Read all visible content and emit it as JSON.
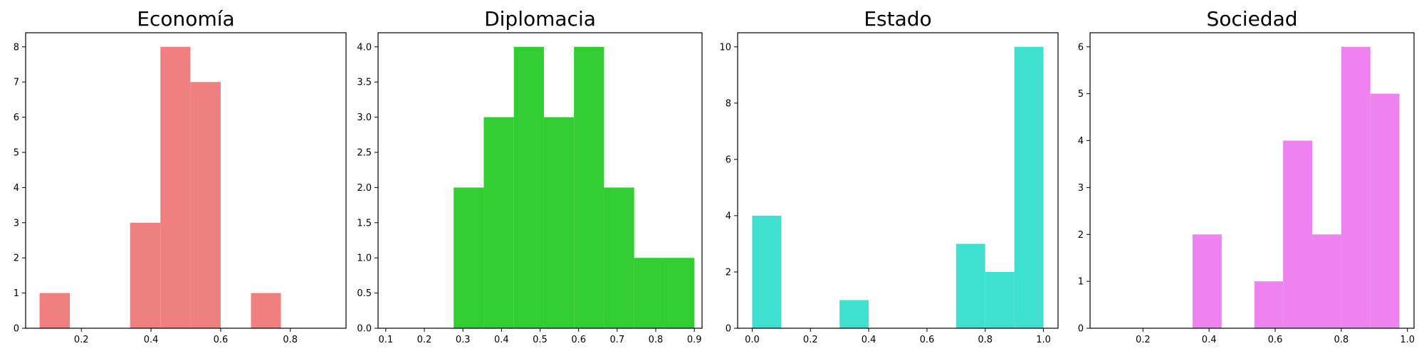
{
  "chart_data": [
    {
      "type": "bar",
      "title": "Economía",
      "color": "#f08080",
      "xlim": [
        0.04,
        0.96
      ],
      "ylim": [
        0,
        8.4
      ],
      "xticks": [
        0.2,
        0.4,
        0.6,
        0.8
      ],
      "xtick_labels": [
        "0.2",
        "0.4",
        "0.6",
        "0.8"
      ],
      "yticks": [
        0,
        1,
        2,
        3,
        4,
        5,
        6,
        7,
        8
      ],
      "ytick_labels": [
        "0",
        "1",
        "2",
        "3",
        "4",
        "5",
        "6",
        "7",
        "8"
      ],
      "bins": [
        {
          "x0": 0.08,
          "x1": 0.167,
          "count": 1
        },
        {
          "x0": 0.167,
          "x1": 0.253,
          "count": 0
        },
        {
          "x0": 0.253,
          "x1": 0.34,
          "count": 0
        },
        {
          "x0": 0.34,
          "x1": 0.427,
          "count": 3
        },
        {
          "x0": 0.427,
          "x1": 0.513,
          "count": 8
        },
        {
          "x0": 0.513,
          "x1": 0.6,
          "count": 7
        },
        {
          "x0": 0.6,
          "x1": 0.687,
          "count": 0
        },
        {
          "x0": 0.687,
          "x1": 0.773,
          "count": 1
        }
      ]
    },
    {
      "type": "bar",
      "title": "Diplomacia",
      "color": "#32cd32",
      "xlim": [
        0.08,
        0.92
      ],
      "ylim": [
        0,
        4.2
      ],
      "xticks": [
        0.1,
        0.2,
        0.3,
        0.4,
        0.5,
        0.6,
        0.7,
        0.8,
        0.9
      ],
      "xtick_labels": [
        "0.1",
        "0.2",
        "0.3",
        "0.4",
        "0.5",
        "0.6",
        "0.7",
        "0.8",
        "0.9"
      ],
      "yticks": [
        0,
        0.5,
        1,
        1.5,
        2,
        2.5,
        3,
        3.5,
        4
      ],
      "ytick_labels": [
        "0.0",
        "0.5",
        "1.0",
        "1.5",
        "2.0",
        "2.5",
        "3.0",
        "3.5",
        "4.0"
      ],
      "bins": [
        {
          "x0": 0.276,
          "x1": 0.354,
          "count": 2
        },
        {
          "x0": 0.354,
          "x1": 0.432,
          "count": 3
        },
        {
          "x0": 0.432,
          "x1": 0.51,
          "count": 4
        },
        {
          "x0": 0.51,
          "x1": 0.588,
          "count": 3
        },
        {
          "x0": 0.588,
          "x1": 0.666,
          "count": 4
        },
        {
          "x0": 0.666,
          "x1": 0.744,
          "count": 2
        },
        {
          "x0": 0.744,
          "x1": 0.822,
          "count": 1
        },
        {
          "x0": 0.822,
          "x1": 0.9,
          "count": 1
        }
      ]
    },
    {
      "type": "bar",
      "title": "Estado",
      "color": "#40e0d0",
      "xlim": [
        -0.05,
        1.05
      ],
      "ylim": [
        0,
        10.5
      ],
      "xticks": [
        0.0,
        0.2,
        0.4,
        0.6,
        0.8,
        1.0
      ],
      "xtick_labels": [
        "0.0",
        "0.2",
        "0.4",
        "0.6",
        "0.8",
        "1.0"
      ],
      "yticks": [
        0,
        2,
        4,
        6,
        8,
        10
      ],
      "ytick_labels": [
        "0",
        "2",
        "4",
        "6",
        "8",
        "10"
      ],
      "bins": [
        {
          "x0": 0.0,
          "x1": 0.1,
          "count": 4
        },
        {
          "x0": 0.1,
          "x1": 0.2,
          "count": 0
        },
        {
          "x0": 0.2,
          "x1": 0.3,
          "count": 0
        },
        {
          "x0": 0.3,
          "x1": 0.4,
          "count": 1
        },
        {
          "x0": 0.4,
          "x1": 0.5,
          "count": 0
        },
        {
          "x0": 0.5,
          "x1": 0.6,
          "count": 0
        },
        {
          "x0": 0.6,
          "x1": 0.7,
          "count": 0
        },
        {
          "x0": 0.7,
          "x1": 0.8,
          "count": 3
        },
        {
          "x0": 0.8,
          "x1": 0.9,
          "count": 2
        },
        {
          "x0": 0.9,
          "x1": 1.0,
          "count": 10
        }
      ]
    },
    {
      "type": "bar",
      "title": "Sociedad",
      "color": "#ee82ee",
      "xlim": [
        0.04,
        1.02
      ],
      "ylim": [
        0,
        6.3
      ],
      "xticks": [
        0.2,
        0.4,
        0.6,
        0.8,
        1.0
      ],
      "xtick_labels": [
        "0.2",
        "0.4",
        "0.6",
        "0.8",
        "1.0"
      ],
      "yticks": [
        0,
        1,
        2,
        3,
        4,
        5,
        6
      ],
      "ytick_labels": [
        "0",
        "1",
        "2",
        "3",
        "4",
        "5",
        "6"
      ],
      "bins": [
        {
          "x0": 0.35,
          "x1": 0.438,
          "count": 2
        },
        {
          "x0": 0.438,
          "x1": 0.537,
          "count": 0
        },
        {
          "x0": 0.537,
          "x1": 0.624,
          "count": 1
        },
        {
          "x0": 0.624,
          "x1": 0.712,
          "count": 4
        },
        {
          "x0": 0.712,
          "x1": 0.8,
          "count": 2
        },
        {
          "x0": 0.8,
          "x1": 0.888,
          "count": 6
        },
        {
          "x0": 0.888,
          "x1": 0.976,
          "count": 5
        }
      ]
    }
  ]
}
